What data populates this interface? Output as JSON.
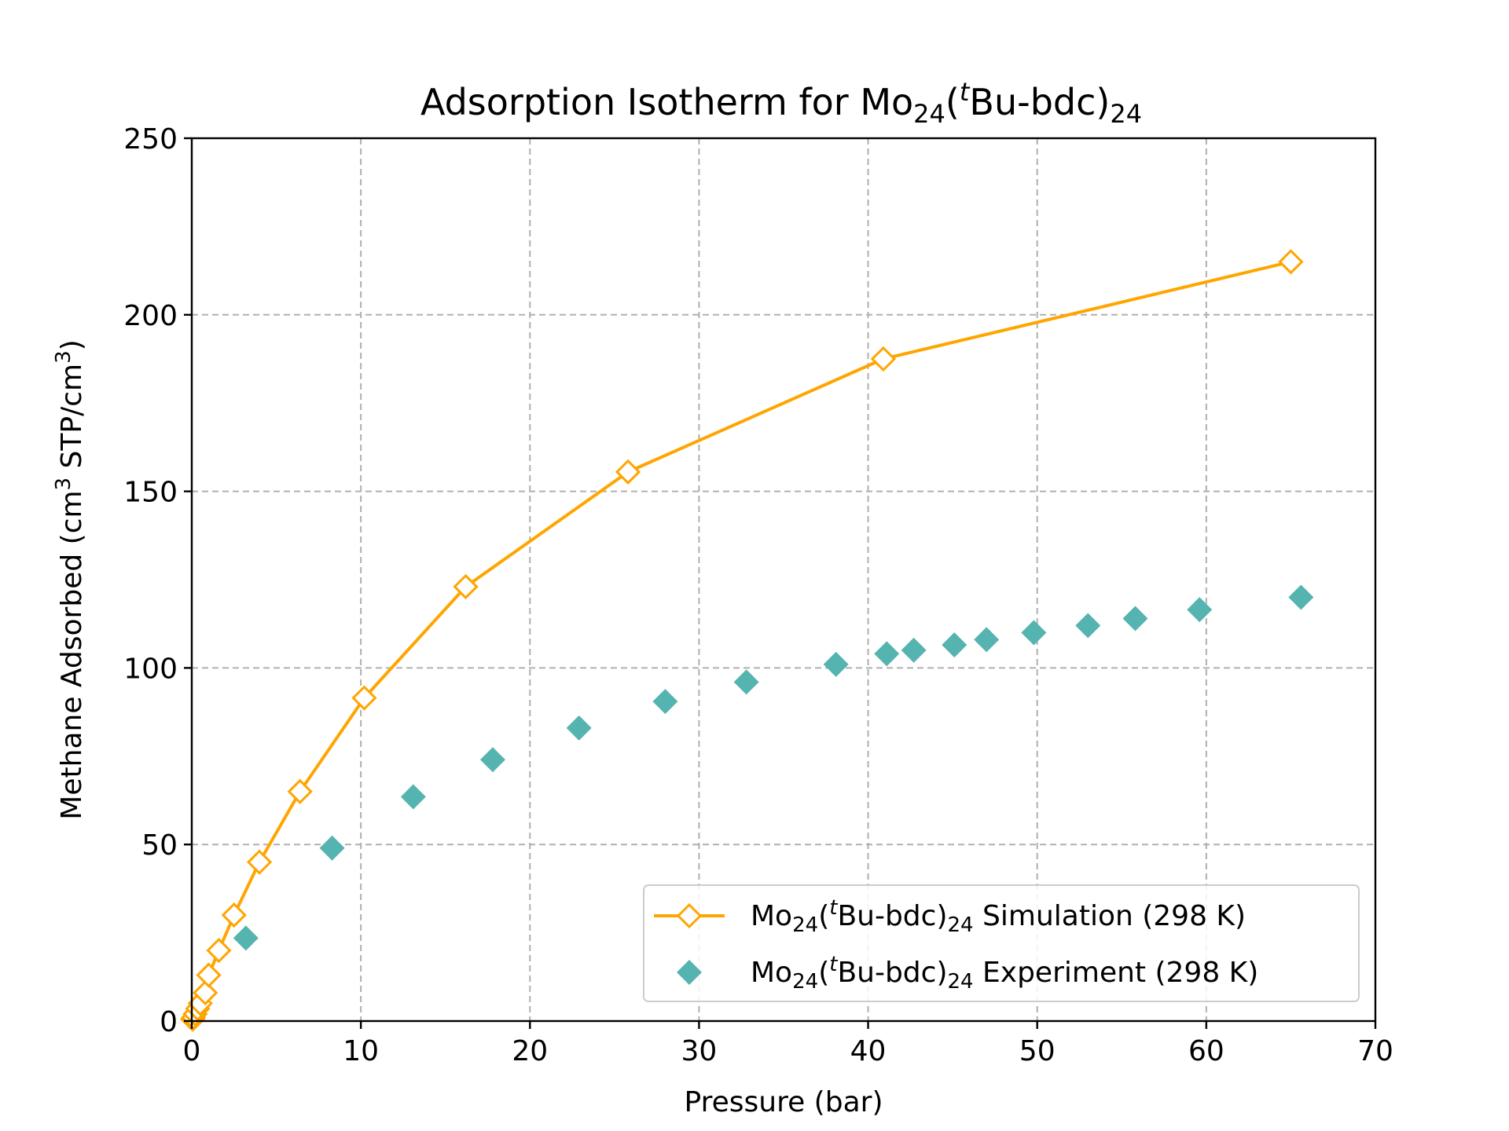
{
  "chart_data": {
    "type": "scatter",
    "title": {
      "prefix": "Adsorption Isotherm for Mo",
      "sub1": "24",
      "mid": "(",
      "sup": "t",
      "after_sup": "Bu-bdc)",
      "sub2": "24"
    },
    "xlabel": "Pressure (bar)",
    "ylabel": {
      "part1": "Methane Adsorbed (cm",
      "sup1": "3",
      "part2": " STP/cm",
      "sup2": "3",
      "part3": ")"
    },
    "xlim": [
      0,
      70
    ],
    "ylim": [
      0,
      250
    ],
    "xticks": [
      0,
      10,
      20,
      30,
      40,
      50,
      60,
      70
    ],
    "yticks": [
      0,
      50,
      100,
      150,
      200,
      250
    ],
    "grid": true,
    "legend_position": "lower-right",
    "series": [
      {
        "name": {
          "prefix": "Mo",
          "sub1": "24",
          "mid": "(",
          "sup": "t",
          "after_sup": "Bu-bdc)",
          "sub2": "24",
          "suffix": " Simulation (298 K)"
        },
        "style": "line-hollow-diamond",
        "color": "#FFA500",
        "points": [
          [
            0.05,
            0.5
          ],
          [
            0.1,
            1.0
          ],
          [
            0.2,
            2.0
          ],
          [
            0.35,
            3.5
          ],
          [
            0.5,
            5.0
          ],
          [
            0.8,
            8.0
          ],
          [
            1.0,
            13.0
          ],
          [
            1.6,
            20.0
          ],
          [
            2.5,
            30.0
          ],
          [
            4.0,
            45.0
          ],
          [
            6.4,
            65.0
          ],
          [
            10.2,
            91.5
          ],
          [
            16.2,
            123.0
          ],
          [
            25.8,
            155.5
          ],
          [
            40.9,
            187.5
          ],
          [
            65.0,
            215.0
          ]
        ]
      },
      {
        "name": {
          "prefix": "Mo",
          "sub1": "24",
          "mid": "(",
          "sup": "t",
          "after_sup": "Bu-bdc)",
          "sub2": "24",
          "suffix": " Experiment (298 K)"
        },
        "style": "filled-diamond",
        "color": "#56B4B0",
        "points": [
          [
            3.2,
            23.5
          ],
          [
            8.3,
            49.0
          ],
          [
            13.1,
            63.5
          ],
          [
            17.8,
            74.0
          ],
          [
            22.9,
            83.0
          ],
          [
            28.0,
            90.5
          ],
          [
            32.8,
            96.0
          ],
          [
            38.1,
            101.0
          ],
          [
            41.1,
            104.0
          ],
          [
            42.7,
            105.0
          ],
          [
            45.1,
            106.5
          ],
          [
            47.0,
            108.0
          ],
          [
            49.8,
            110.0
          ],
          [
            53.0,
            112.0
          ],
          [
            55.8,
            114.0
          ],
          [
            59.6,
            116.5
          ],
          [
            65.6,
            120.0
          ]
        ]
      }
    ]
  }
}
